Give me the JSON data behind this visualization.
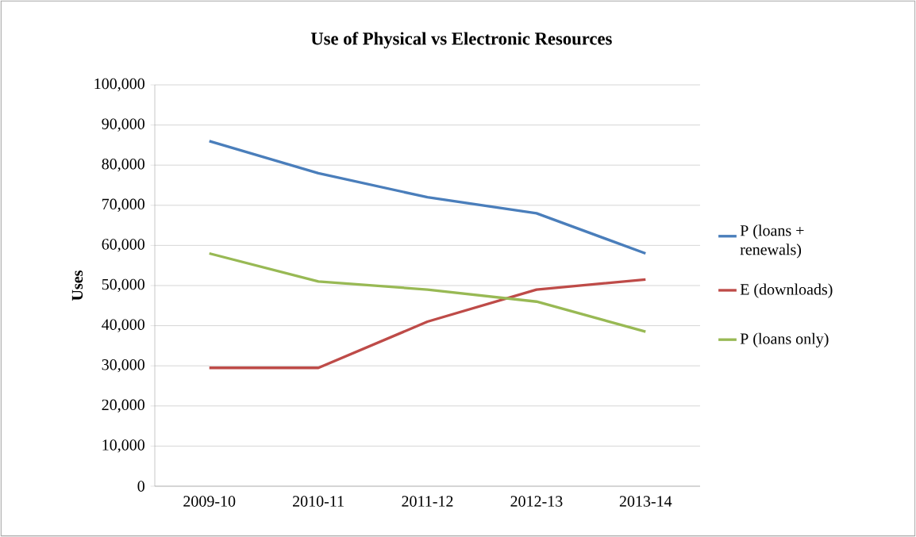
{
  "chart_data": {
    "type": "line",
    "title": "Use of Physical vs Electronic Resources",
    "ylabel": "Uses",
    "categories": [
      "2009-10",
      "2010-11",
      "2011-12",
      "2012-13",
      "2013-14"
    ],
    "series": [
      {
        "name": "P (loans + renewals)",
        "color": "#4a7ebb",
        "values": [
          86000,
          78000,
          72000,
          68000,
          58000
        ]
      },
      {
        "name": "E (downloads)",
        "color": "#be4b48",
        "values": [
          29500,
          29500,
          41000,
          49000,
          51500
        ]
      },
      {
        "name": "P (loans only)",
        "color": "#98b954",
        "values": [
          58000,
          51000,
          49000,
          46000,
          38500
        ]
      }
    ],
    "ylim": [
      0,
      100000
    ],
    "yticks": [
      {
        "value": 0,
        "label": "0"
      },
      {
        "value": 10000,
        "label": "10,000"
      },
      {
        "value": 20000,
        "label": "20,000"
      },
      {
        "value": 30000,
        "label": "30,000"
      },
      {
        "value": 40000,
        "label": "40,000"
      },
      {
        "value": 50000,
        "label": "50,000"
      },
      {
        "value": 60000,
        "label": "60,000"
      },
      {
        "value": 70000,
        "label": "70,000"
      },
      {
        "value": 80000,
        "label": "80,000"
      },
      {
        "value": 90000,
        "label": "90,000"
      },
      {
        "value": 100000,
        "label": "100,000"
      }
    ],
    "grid": "y",
    "legend": "right",
    "marker": "none",
    "line_style": "solid"
  }
}
